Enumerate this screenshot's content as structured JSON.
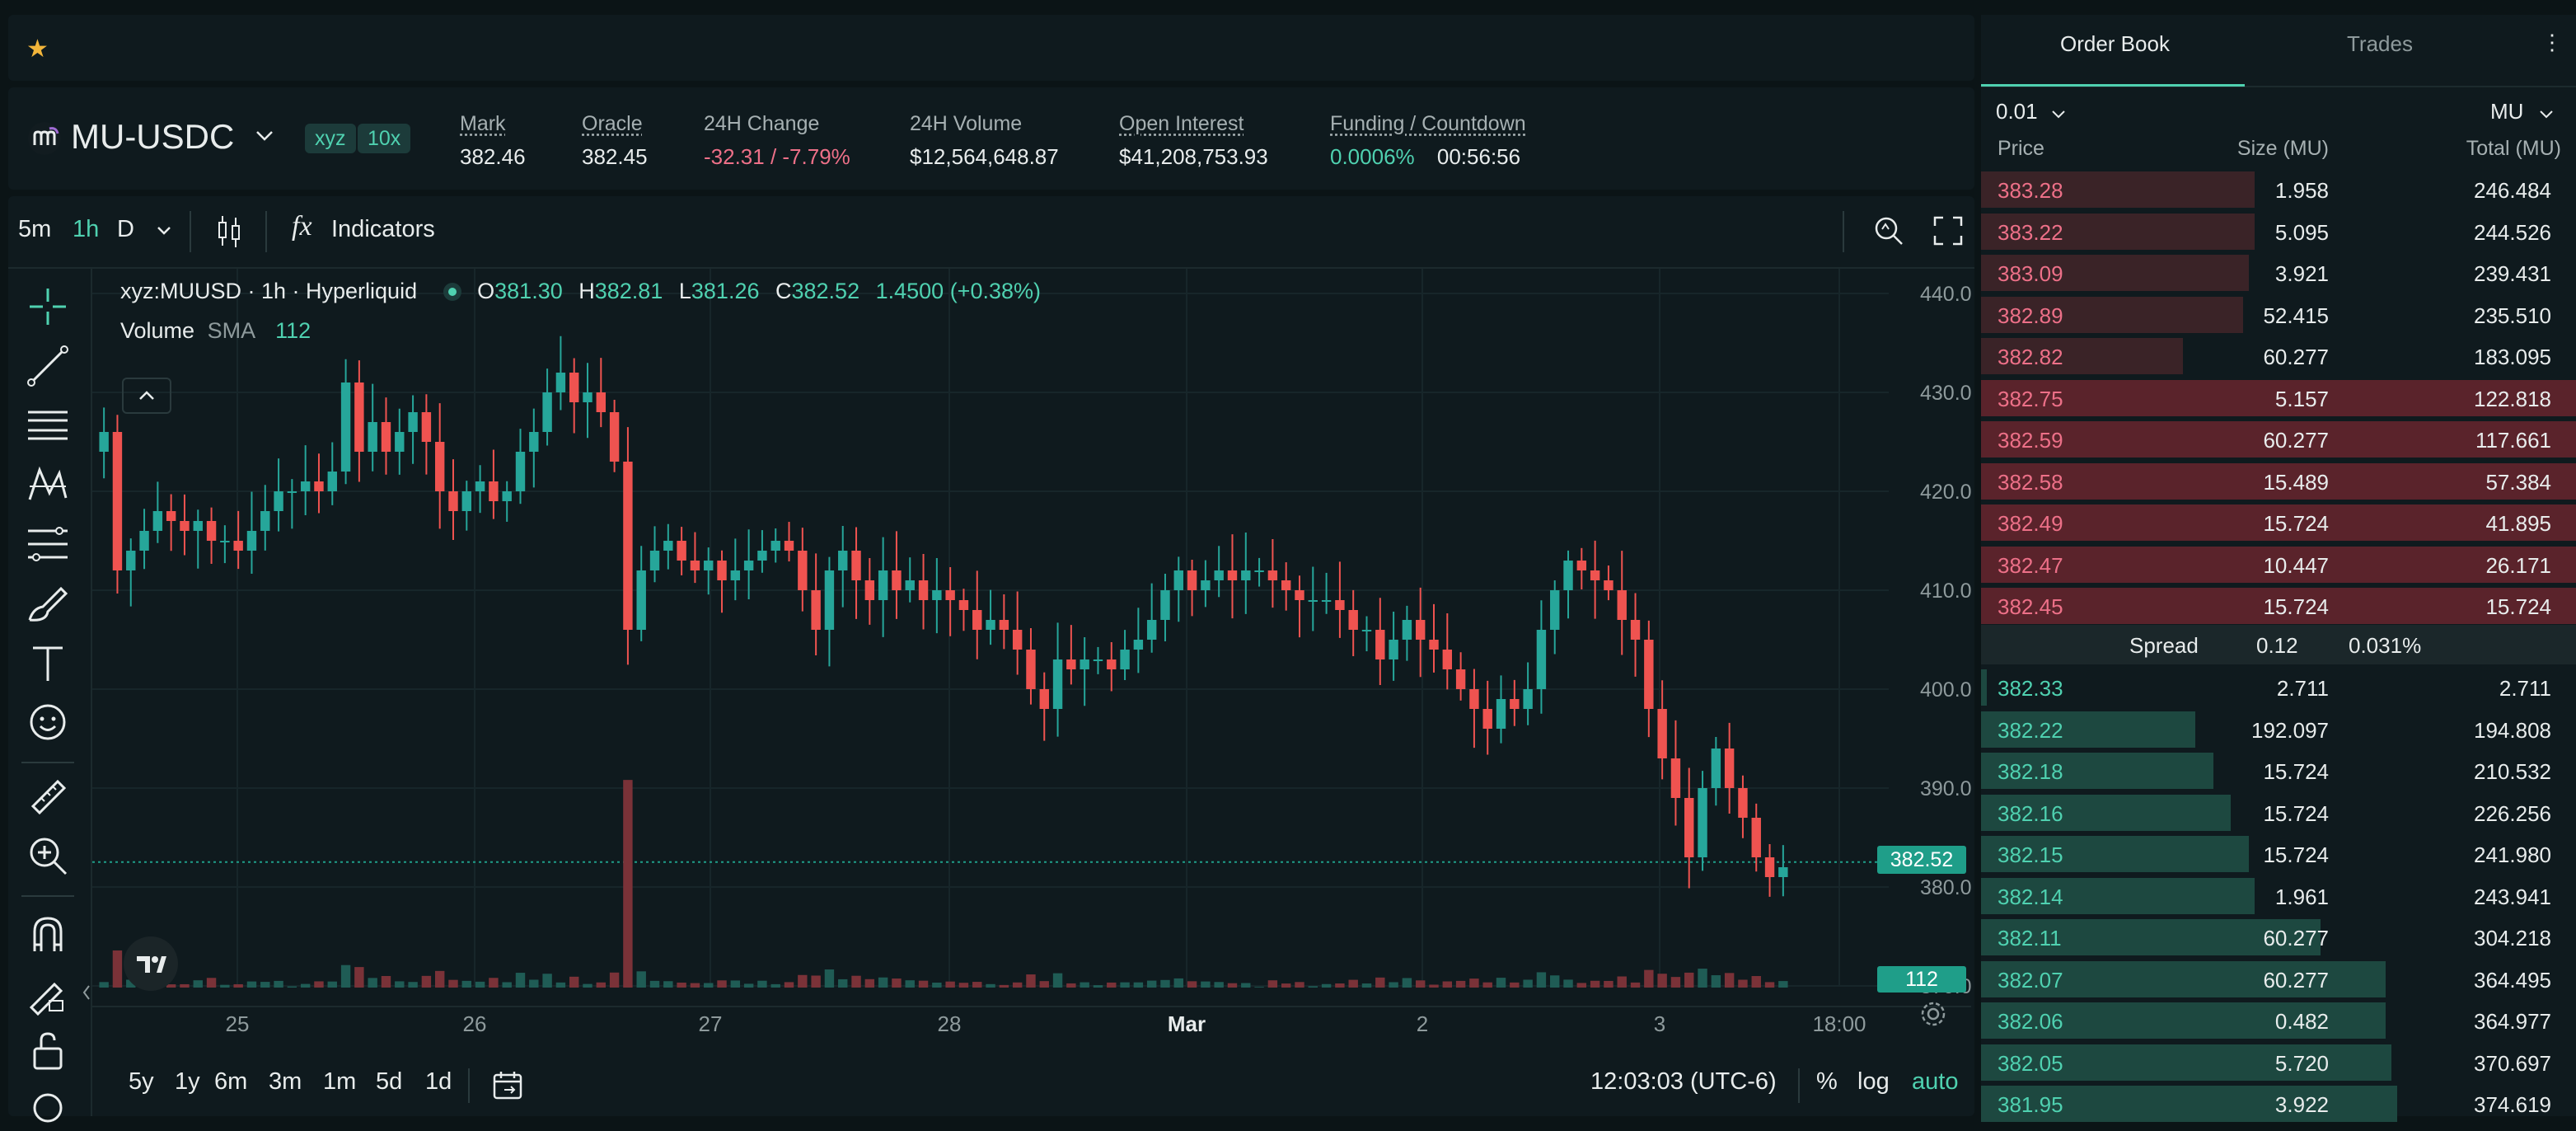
{
  "header": {
    "symbol": "MU-USDC",
    "dex_badge": "xyz",
    "leverage_badge": "10x",
    "stats": [
      {
        "label": "Mark",
        "value": "382.46",
        "underline": true
      },
      {
        "label": "Oracle",
        "value": "382.45",
        "underline": true
      },
      {
        "label": "24H Change",
        "value": "-32.31 / -7.79%",
        "underline": false
      },
      {
        "label": "24H Volume",
        "value": "$12,564,648.87",
        "underline": false
      },
      {
        "label": "Open Interest",
        "value": "$41,208,753.93",
        "underline": true
      },
      {
        "label": "Funding / Countdown",
        "value": "0.0006%",
        "value2": "00:56:56",
        "underline": true
      }
    ]
  },
  "toolbar": {
    "intervals": [
      "5m",
      "1h",
      "D"
    ],
    "active_interval": "1h",
    "indicators_label": "Indicators"
  },
  "legend": {
    "title": "xyz:MUUSD · 1h · Hyperliquid",
    "o_label": "O",
    "o": "381.30",
    "h_label": "H",
    "h": "382.81",
    "l_label": "L",
    "l": "381.26",
    "c_label": "C",
    "c": "382.52",
    "change": "1.4500 (+0.38%)",
    "volume_label": "Volume",
    "sma_label": "SMA",
    "sma_value": "112"
  },
  "chart_data": {
    "type": "candlestick",
    "price_ticks": [
      "440.00",
      "430.00",
      "420.00",
      "410.00",
      "400.00",
      "390.00",
      "380.00",
      "370.00"
    ],
    "price_range": [
      370,
      440
    ],
    "x_ticks": [
      "25",
      "26",
      "27",
      "28",
      "Mar",
      "2",
      "3",
      "18:00"
    ],
    "last_price": "382.52",
    "volume_label_value": "112",
    "closes": [
      426,
      412,
      414,
      416,
      418,
      417,
      416,
      417,
      415,
      415,
      414,
      416,
      418,
      420,
      420,
      421,
      420,
      422,
      431,
      424,
      427,
      424,
      426,
      428,
      425,
      420,
      418,
      420,
      421,
      419,
      420,
      424,
      426,
      430,
      432,
      429,
      430,
      428,
      423,
      406,
      412,
      414,
      415,
      413,
      412,
      413,
      411,
      412,
      413,
      414,
      415,
      414,
      410,
      406,
      412,
      414,
      411,
      409,
      412,
      410,
      411,
      409,
      410,
      409,
      408,
      406,
      407,
      406,
      404,
      400,
      398,
      403,
      402,
      403,
      403,
      402,
      404,
      405,
      407,
      410,
      412,
      410,
      411,
      412,
      411,
      412,
      412,
      411,
      410,
      409,
      409,
      409,
      408,
      406,
      406,
      403,
      405,
      407,
      405,
      404,
      402,
      400,
      398,
      396,
      399,
      398,
      400,
      406,
      410,
      413,
      412,
      411,
      410,
      407,
      405,
      398,
      393,
      389,
      383,
      390,
      394,
      390,
      387,
      383,
      381,
      382
    ]
  },
  "bottombar": {
    "ranges": [
      "5y",
      "1y",
      "6m",
      "3m",
      "1m",
      "5d",
      "1d"
    ],
    "time": "12:03:03 (UTC-6)",
    "percent": "%",
    "log": "log",
    "auto": "auto"
  },
  "orderbook": {
    "tabs": [
      "Order Book",
      "Trades"
    ],
    "tick_size": "0.01",
    "unit": "MU",
    "headers": {
      "price": "Price",
      "size": "Size (MU)",
      "total": "Total (MU)"
    },
    "asks": [
      {
        "price": "383.28",
        "size": "1.958",
        "total": "246.484",
        "depth": 0.46
      },
      {
        "price": "383.22",
        "size": "5.095",
        "total": "244.526",
        "depth": 0.46
      },
      {
        "price": "383.09",
        "size": "3.921",
        "total": "239.431",
        "depth": 0.45
      },
      {
        "price": "382.89",
        "size": "52.415",
        "total": "235.510",
        "depth": 0.44
      },
      {
        "price": "382.82",
        "size": "60.277",
        "total": "183.095",
        "depth": 0.34
      },
      {
        "price": "382.75",
        "size": "5.157",
        "total": "122.818",
        "depth": 0.23
      },
      {
        "price": "382.59",
        "size": "60.277",
        "total": "117.661",
        "depth": 0.22
      },
      {
        "price": "382.58",
        "size": "15.489",
        "total": "57.384",
        "depth": 0.11
      },
      {
        "price": "382.49",
        "size": "15.724",
        "total": "41.895",
        "depth": 0.08
      },
      {
        "price": "382.47",
        "size": "10.447",
        "total": "26.171",
        "depth": 0.05
      },
      {
        "price": "382.45",
        "size": "15.724",
        "total": "15.724",
        "depth": 0.03
      }
    ],
    "spread": {
      "label": "Spread",
      "value": "0.12",
      "pct": "0.031%"
    },
    "bids": [
      {
        "price": "382.33",
        "size": "2.711",
        "total": "2.711",
        "depth": 0.01
      },
      {
        "price": "382.22",
        "size": "192.097",
        "total": "194.808",
        "depth": 0.36
      },
      {
        "price": "382.18",
        "size": "15.724",
        "total": "210.532",
        "depth": 0.39
      },
      {
        "price": "382.16",
        "size": "15.724",
        "total": "226.256",
        "depth": 0.42
      },
      {
        "price": "382.15",
        "size": "15.724",
        "total": "241.980",
        "depth": 0.45
      },
      {
        "price": "382.14",
        "size": "1.961",
        "total": "243.941",
        "depth": 0.46
      },
      {
        "price": "382.11",
        "size": "60.277",
        "total": "304.218",
        "depth": 0.57
      },
      {
        "price": "382.07",
        "size": "60.277",
        "total": "364.495",
        "depth": 0.68
      },
      {
        "price": "382.06",
        "size": "0.482",
        "total": "364.977",
        "depth": 0.68
      },
      {
        "price": "382.05",
        "size": "5.720",
        "total": "370.697",
        "depth": 0.69
      },
      {
        "price": "381.95",
        "size": "3.922",
        "total": "374.619",
        "depth": 0.7
      }
    ]
  },
  "colors": {
    "green": "#4fd1b0",
    "red": "#ed7088",
    "bg": "#0b1416",
    "panel": "#0f1a1e"
  }
}
